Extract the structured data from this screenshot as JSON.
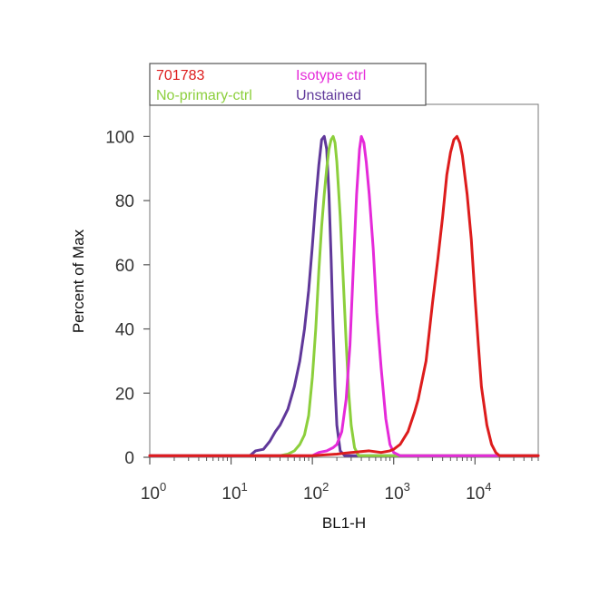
{
  "chart_data": {
    "type": "line",
    "title": "",
    "xlabel": "BL1-H",
    "ylabel": "Percent of Max",
    "x_scale": "log",
    "xlim": [
      1,
      60000
    ],
    "ylim": [
      0,
      110
    ],
    "x_ticks": [
      {
        "value": 1,
        "base": "10",
        "exp": "0"
      },
      {
        "value": 10,
        "base": "10",
        "exp": "1"
      },
      {
        "value": 100,
        "base": "10",
        "exp": "2"
      },
      {
        "value": 1000,
        "base": "10",
        "exp": "3"
      },
      {
        "value": 10000,
        "base": "10",
        "exp": "4"
      }
    ],
    "y_ticks": [
      "0",
      "20",
      "40",
      "60",
      "80",
      "100"
    ],
    "grid": false,
    "legend_position": "top-left",
    "series": [
      {
        "name": "701783",
        "color": "#dd1c1c",
        "points": [
          [
            1,
            0.5
          ],
          [
            100,
            0.5
          ],
          [
            200,
            1
          ],
          [
            300,
            1.5
          ],
          [
            500,
            2
          ],
          [
            700,
            1.5
          ],
          [
            900,
            2
          ],
          [
            1000,
            2.5
          ],
          [
            1200,
            4
          ],
          [
            1500,
            8
          ],
          [
            1800,
            14
          ],
          [
            2000,
            18
          ],
          [
            2500,
            30
          ],
          [
            3000,
            48
          ],
          [
            3500,
            62
          ],
          [
            4000,
            75
          ],
          [
            4500,
            88
          ],
          [
            5000,
            95
          ],
          [
            5500,
            99
          ],
          [
            6000,
            100
          ],
          [
            6500,
            98
          ],
          [
            7000,
            94
          ],
          [
            8000,
            82
          ],
          [
            9000,
            68
          ],
          [
            10000,
            50
          ],
          [
            11000,
            35
          ],
          [
            12000,
            22
          ],
          [
            14000,
            10
          ],
          [
            16000,
            4
          ],
          [
            18000,
            1.5
          ],
          [
            20000,
            0.5
          ],
          [
            60000,
            0.5
          ]
        ]
      },
      {
        "name": "Isotype ctrl",
        "color": "#e52ad9",
        "points": [
          [
            1,
            0.5
          ],
          [
            100,
            0.5
          ],
          [
            120,
            1.5
          ],
          [
            150,
            2
          ],
          [
            180,
            3
          ],
          [
            200,
            4
          ],
          [
            230,
            8
          ],
          [
            260,
            18
          ],
          [
            290,
            35
          ],
          [
            320,
            60
          ],
          [
            350,
            82
          ],
          [
            380,
            96
          ],
          [
            400,
            100
          ],
          [
            430,
            98
          ],
          [
            460,
            92
          ],
          [
            500,
            82
          ],
          [
            560,
            65
          ],
          [
            620,
            45
          ],
          [
            700,
            28
          ],
          [
            800,
            12
          ],
          [
            900,
            4
          ],
          [
            1000,
            1.5
          ],
          [
            1200,
            0.5
          ],
          [
            60000,
            0.5
          ]
        ]
      },
      {
        "name": "No-primary-ctrl",
        "color": "#8ccf3c",
        "points": [
          [
            1,
            0.5
          ],
          [
            40,
            0.5
          ],
          [
            50,
            1
          ],
          [
            60,
            2
          ],
          [
            70,
            4
          ],
          [
            80,
            7
          ],
          [
            90,
            13
          ],
          [
            100,
            25
          ],
          [
            110,
            40
          ],
          [
            120,
            58
          ],
          [
            130,
            72
          ],
          [
            140,
            82
          ],
          [
            150,
            90
          ],
          [
            160,
            96
          ],
          [
            170,
            99
          ],
          [
            180,
            100
          ],
          [
            190,
            98
          ],
          [
            200,
            92
          ],
          [
            220,
            75
          ],
          [
            240,
            55
          ],
          [
            260,
            36
          ],
          [
            280,
            20
          ],
          [
            300,
            10
          ],
          [
            330,
            3
          ],
          [
            370,
            0.5
          ],
          [
            60000,
            0.5
          ]
        ]
      },
      {
        "name": "Unstained",
        "color": "#60389a",
        "points": [
          [
            1,
            0.5
          ],
          [
            17,
            0.5
          ],
          [
            20,
            2
          ],
          [
            25,
            2.5
          ],
          [
            30,
            5
          ],
          [
            35,
            8
          ],
          [
            40,
            10
          ],
          [
            50,
            15
          ],
          [
            60,
            22
          ],
          [
            70,
            30
          ],
          [
            80,
            40
          ],
          [
            90,
            52
          ],
          [
            100,
            66
          ],
          [
            110,
            80
          ],
          [
            120,
            91
          ],
          [
            130,
            99
          ],
          [
            140,
            100
          ],
          [
            150,
            96
          ],
          [
            160,
            82
          ],
          [
            170,
            62
          ],
          [
            180,
            40
          ],
          [
            190,
            22
          ],
          [
            200,
            10
          ],
          [
            220,
            2
          ],
          [
            250,
            0.5
          ],
          [
            60000,
            0.5
          ]
        ]
      }
    ]
  }
}
